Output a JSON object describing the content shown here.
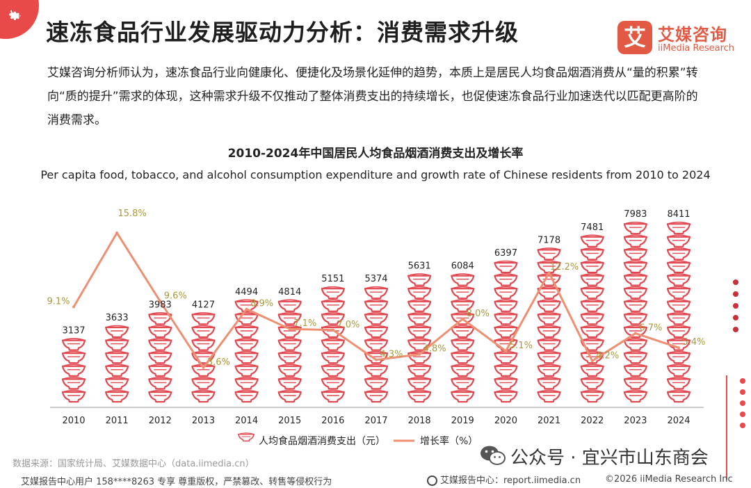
{
  "page": {
    "title": "速冻食品行业发展驱动力分析：消费需求升级",
    "intro": "艾媒咨询分析师认为，速冻食品行业向健康化、便捷化及场景化延伸的趋势，本质上是居民人均食品烟酒消费从“量的积累”转向“质的提升”需求的体现，这种需求升级不仅推动了整体消费支出的持续增长，也促使速冻食品行业加速迭代以匹配更高阶的消费需求。"
  },
  "logo": {
    "mark": "艾",
    "name": "艾媒咨询",
    "english": "iiMedia Research",
    "icon": "gear-icon"
  },
  "chart_data": {
    "type": "bar",
    "title": "2010-2024年中国居民人均食品烟酒消费支出及增长率",
    "subtitle": "Per capita food, tobacco, and alcohol consumption expenditure and growth rate of Chinese residents from 2010 to 2024",
    "categories": [
      "2010",
      "2011",
      "2012",
      "2013",
      "2014",
      "2015",
      "2016",
      "2017",
      "2018",
      "2019",
      "2020",
      "2021",
      "2022",
      "2023",
      "2024"
    ],
    "series": [
      {
        "name": "人均食品烟酒消费支出（元）",
        "type": "pictorial-bar",
        "icon": "bowl-icon",
        "color": "#e2474f",
        "values": [
          3137,
          3633,
          3983,
          4127,
          4494,
          4814,
          5151,
          5374,
          5631,
          6084,
          6397,
          7178,
          7481,
          7983,
          8411
        ],
        "labels": [
          "3137",
          "3633",
          "3983",
          "4127",
          "4494",
          "4814",
          "5151",
          "5374",
          "5631",
          "6084",
          "6397",
          "7178",
          "7481",
          "7983",
          "8411"
        ]
      },
      {
        "name": "增长率（%）",
        "type": "line",
        "color": "#ef8f72",
        "label_color": "#a89a3a",
        "values": [
          9.1,
          15.8,
          9.6,
          3.6,
          8.9,
          7.1,
          7.0,
          4.3,
          4.8,
          8.0,
          5.1,
          12.2,
          4.2,
          6.7,
          5.4
        ],
        "labels": [
          "9.1%",
          "15.8%",
          "9.6%",
          "3.6%",
          "8.9%",
          "7.1%",
          "7.0%",
          "4.3%",
          "4.8%",
          "8.0%",
          "5.1%",
          "12.2%",
          "4.2%",
          "6.7%",
          "5.4%"
        ]
      }
    ],
    "y_left_range": [
      0,
      9000
    ],
    "y_right_range": [
      0,
      18
    ],
    "grid": false,
    "legend_position": "bottom-center"
  },
  "footer": {
    "source": "数据来源：国家统计局、艾媒数据中心（data.iimedia.cn）",
    "user_notice": "艾媒报告中心用户 158****8263 专享 尊重版权，严禁篡改、转售等侵权行为",
    "site": "艾媒报告中心：report.iimedia.cn",
    "copyright": "©2026  iiMedia Research  Inc",
    "wechat": "公众号 · 宜兴市山东商会",
    "wechat_icon": "wechat-icon"
  }
}
